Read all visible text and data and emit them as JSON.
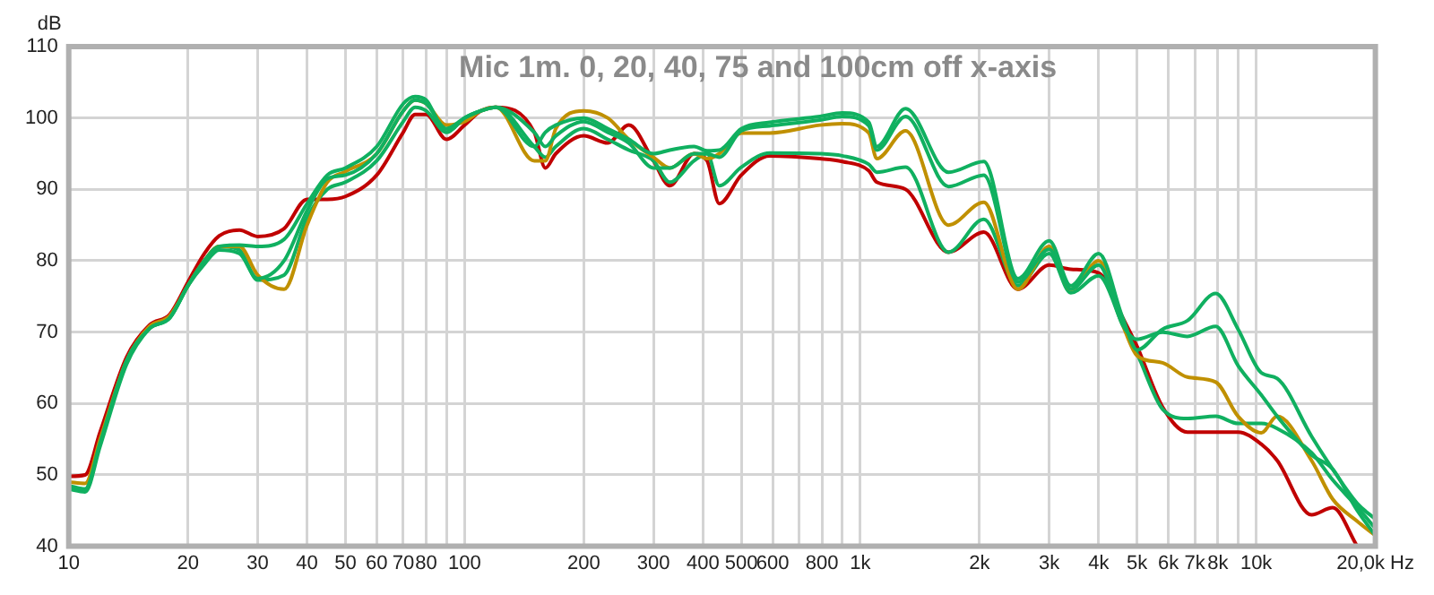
{
  "chart_data": {
    "type": "line",
    "title": "Mic 1m. 0, 20, 40, 75 and 100cm off x-axis",
    "ylabel": "dB",
    "x": [
      10,
      11,
      12,
      14,
      16,
      18,
      20,
      22,
      24,
      27,
      30,
      35,
      40,
      45,
      50,
      60,
      70,
      75,
      80,
      90,
      100,
      110,
      120,
      150,
      160,
      170,
      200,
      230,
      260,
      300,
      330,
      380,
      410,
      440,
      500,
      590,
      790,
      900,
      1050,
      1100,
      1300,
      1670,
      2050,
      2500,
      3000,
      3400,
      4000,
      4600,
      5000,
      5800,
      6700,
      7900,
      9000,
      10300,
      11300,
      13800,
      15600,
      18000,
      20000
    ],
    "series": [
      {
        "color": "#10b060",
        "values": [
          48.3,
          48,
          54.5,
          66,
          70.5,
          72,
          76.5,
          80,
          82,
          82.2,
          82,
          83,
          88,
          92,
          93,
          96,
          102,
          103,
          102.5,
          98,
          100,
          101,
          101.5,
          96,
          98,
          99,
          100,
          98.5,
          97,
          95,
          95.5,
          96,
          95.4,
          95.5,
          98.5,
          99.4,
          100.2,
          100.7,
          99.4,
          96,
          101.3,
          92.4,
          93.9,
          77.5,
          82.8,
          76.5,
          81,
          72,
          67.5,
          70.4,
          71.6,
          75.4,
          70.4,
          64.3,
          63.5,
          55.4,
          50.8,
          46,
          43.8
        ]
      },
      {
        "color": "#10b060",
        "values": [
          48,
          47.6,
          54,
          65.5,
          70.5,
          72,
          76.5,
          79.5,
          81.5,
          81,
          77.5,
          80,
          87,
          91.5,
          92,
          95,
          101,
          102.5,
          102,
          98.5,
          100,
          101,
          101.5,
          98,
          96,
          97.5,
          99.5,
          98,
          96.5,
          93,
          93,
          95,
          95,
          94.5,
          98.2,
          98.9,
          99.7,
          100.2,
          98.9,
          95.5,
          100.2,
          90.4,
          92,
          77,
          81.6,
          76,
          79.4,
          71,
          69,
          70,
          69.4,
          70.8,
          65.3,
          61.2,
          58.2,
          52.8,
          50.8,
          45,
          41.5
        ]
      },
      {
        "color": "#c09000",
        "values": [
          49,
          48.8,
          55,
          66,
          70.8,
          72.3,
          76.5,
          80,
          82,
          82,
          78,
          76,
          85,
          91,
          92.5,
          95,
          101,
          102.5,
          102,
          99,
          99.5,
          101,
          101.5,
          94,
          94,
          98.5,
          101,
          100,
          97,
          94.5,
          93,
          95,
          94.3,
          95,
          97.9,
          97.9,
          99,
          99.2,
          97.9,
          94.3,
          98.2,
          85,
          88.2,
          76,
          82,
          76,
          80,
          71,
          66.7,
          65.7,
          63.7,
          63,
          58.2,
          55.9,
          58.2,
          52,
          46.6,
          43.5,
          41.5
        ]
      },
      {
        "color": "#10b060",
        "values": [
          48.5,
          48,
          54.5,
          66,
          70.5,
          72,
          76.5,
          80,
          82,
          81.5,
          77.3,
          78,
          86,
          90,
          91,
          94,
          99.5,
          101.5,
          101,
          98,
          100,
          101,
          101.5,
          96,
          94.5,
          96,
          98.5,
          97,
          95.5,
          94,
          91,
          94,
          95,
          90.5,
          93.1,
          95.1,
          95,
          94.7,
          93.5,
          92.4,
          93.1,
          81.2,
          85.8,
          76.5,
          81,
          75.5,
          77.9,
          71,
          67,
          59.2,
          57.9,
          58.2,
          57.2,
          57.2,
          56.5,
          53.1,
          49.3,
          45.5,
          42.5
        ]
      },
      {
        "color": "#c00000",
        "values": [
          49.8,
          50,
          56,
          66.5,
          71,
          72.5,
          77,
          81,
          83.5,
          84.3,
          83.4,
          84.5,
          88.6,
          88.6,
          89,
          92,
          98,
          100.5,
          100.5,
          97,
          99,
          101,
          101.5,
          98,
          93,
          95,
          97.5,
          96.5,
          99,
          94,
          90.5,
          95,
          94,
          88,
          92,
          94.7,
          94.3,
          93.9,
          92.6,
          91,
          90,
          81.2,
          84,
          76,
          79.4,
          78.8,
          78.3,
          72,
          68,
          59.5,
          56,
          56,
          56,
          54.3,
          52,
          44.4,
          45.4,
          40,
          null
        ]
      }
    ],
    "log": "x",
    "xlim": [
      10,
      20000
    ],
    "ylim": [
      40,
      110
    ],
    "xticks": [
      10,
      20,
      30,
      40,
      50,
      60,
      70,
      80,
      {
        "value": 90,
        "label": null
      },
      100,
      200,
      300,
      400,
      500,
      600,
      {
        "value": 700,
        "label": null
      },
      800,
      {
        "value": 900,
        "label": null
      },
      {
        "value": 1000,
        "label": "1k"
      },
      {
        "value": 2000,
        "label": "2k"
      },
      {
        "value": 3000,
        "label": "3k"
      },
      {
        "value": 4000,
        "label": "4k"
      },
      {
        "value": 5000,
        "label": "5k"
      },
      {
        "value": 6000,
        "label": "6k"
      },
      {
        "value": 7000,
        "label": "7k"
      },
      {
        "value": 8000,
        "label": "8k"
      },
      {
        "value": 9000,
        "label": null
      },
      {
        "value": 10000,
        "label": "10k"
      },
      {
        "value": 20000,
        "label": "20,0k Hz"
      }
    ],
    "yticks": [
      40,
      50,
      60,
      70,
      80,
      90,
      100,
      110
    ],
    "grid": true,
    "legend": false,
    "marker": "none",
    "line_style": "solid"
  }
}
